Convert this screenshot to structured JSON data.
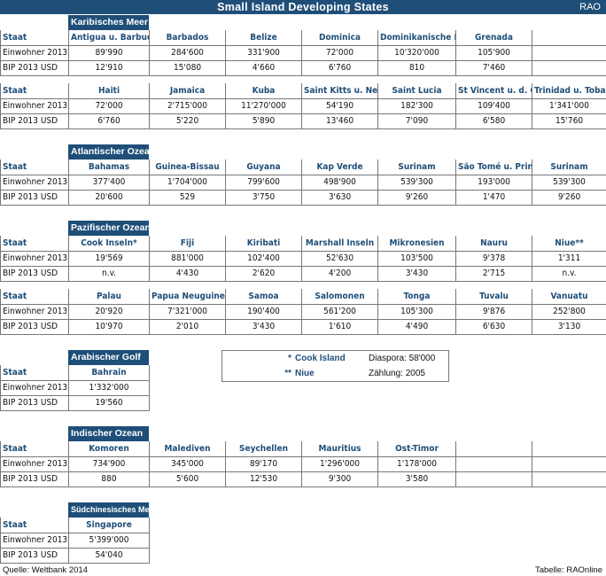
{
  "header": {
    "title": "Small Island Developing States",
    "right": "RAO"
  },
  "row_labels": {
    "staat": "Staat",
    "einwohner": "Einwohner 2013",
    "bip": "BIP 2013 USD"
  },
  "regions": {
    "karibik": "Karibisches Meer",
    "atlantik": "Atlantischer Ozean",
    "pazifik": "Pazifischer Ozean",
    "arabisch": "Arabischer Golf",
    "indisch": "Indischer Ozean",
    "suedchina": "Südchinesisches Meer"
  },
  "tables": {
    "karibik1": {
      "countries": [
        "Antigua u. Barbuda",
        "Barbados",
        "Belize",
        "Dominica",
        "Dominikanische Rep.",
        "Grenada",
        ""
      ],
      "einwohner": [
        "89'990",
        "284'600",
        "331'900",
        "72'000",
        "10'320'000",
        "105'900",
        ""
      ],
      "bip": [
        "12'910",
        "15'080",
        "4'660",
        "6'760",
        "810",
        "7'460",
        ""
      ]
    },
    "karibik2": {
      "countries": [
        "Haiti",
        "Jamaica",
        "Kuba",
        "Saint Kitts u. Nevis",
        "Saint Lucia",
        "St Vincent u. d. G.",
        "Trinidad u. Tobago"
      ],
      "einwohner": [
        "72'000",
        "2'715'000",
        "11'270'000",
        "54'190",
        "182'300",
        "109'400",
        "1'341'000"
      ],
      "bip": [
        "6'760",
        "5'220",
        "5'890",
        "13'460",
        "7'090",
        "6'580",
        "15'760"
      ]
    },
    "atlantik": {
      "countries": [
        "Bahamas",
        "Guinea-Bissau",
        "Guyana",
        "Kap Verde",
        "Surinam",
        "São Tomé u. Principe",
        "Surinam"
      ],
      "einwohner": [
        "377'400",
        "1'704'000",
        "799'600",
        "498'900",
        "539'300",
        "193'000",
        "539'300"
      ],
      "bip": [
        "20'600",
        "529",
        "3'750",
        "3'630",
        "9'260",
        "1'470",
        "9'260"
      ]
    },
    "pazifik1": {
      "countries": [
        "Cook Inseln*",
        "Fiji",
        "Kiribati",
        "Marshall Inseln",
        "Mikronesien",
        "Nauru",
        "Niue**"
      ],
      "einwohner": [
        "19'569",
        "881'000",
        "102'400",
        "52'630",
        "103'500",
        "9'378",
        "1'311"
      ],
      "bip": [
        "n.v.",
        "4'430",
        "2'620",
        "4'200",
        "3'430",
        "2'715",
        "n.v."
      ]
    },
    "pazifik2": {
      "countries": [
        "Palau",
        "Papua Neuguinea",
        "Samoa",
        "Salomonen",
        "Tonga",
        "Tuvalu",
        "Vanuatu"
      ],
      "einwohner": [
        "20'920",
        "7'321'000",
        "190'400",
        "561'200",
        "105'300",
        "9'876",
        "252'800"
      ],
      "bip": [
        "10'970",
        "2'010",
        "3'430",
        "1'610",
        "4'490",
        "6'630",
        "3'130"
      ]
    },
    "arabisch": {
      "countries": [
        "Bahrain"
      ],
      "einwohner": [
        "1'332'000"
      ],
      "bip": [
        "19'560"
      ]
    },
    "indisch": {
      "countries": [
        "Komoren",
        "Malediven",
        "Seychellen",
        "Mauritius",
        "Ost-Timor",
        "",
        ""
      ],
      "einwohner": [
        "734'900",
        "345'000",
        "89'170",
        "1'296'000",
        "1'178'000",
        "",
        ""
      ],
      "bip": [
        "880",
        "5'600",
        "12'530",
        "9'300",
        "3'580",
        "",
        ""
      ]
    },
    "suedchina": {
      "countries": [
        "Singapore"
      ],
      "einwohner": [
        "5'399'000"
      ],
      "bip": [
        "54'040"
      ]
    }
  },
  "legend": [
    {
      "marker": "*",
      "name": "Cook Island",
      "note": "Diaspora: 58'000"
    },
    {
      "marker": "**",
      "name": "Niue",
      "note": "Zählung: 2005"
    }
  ],
  "footer": {
    "source_label": "Quelle:",
    "source": "Weltbank 2014",
    "table_label": "Tabelle:",
    "table": "RAOnline"
  }
}
